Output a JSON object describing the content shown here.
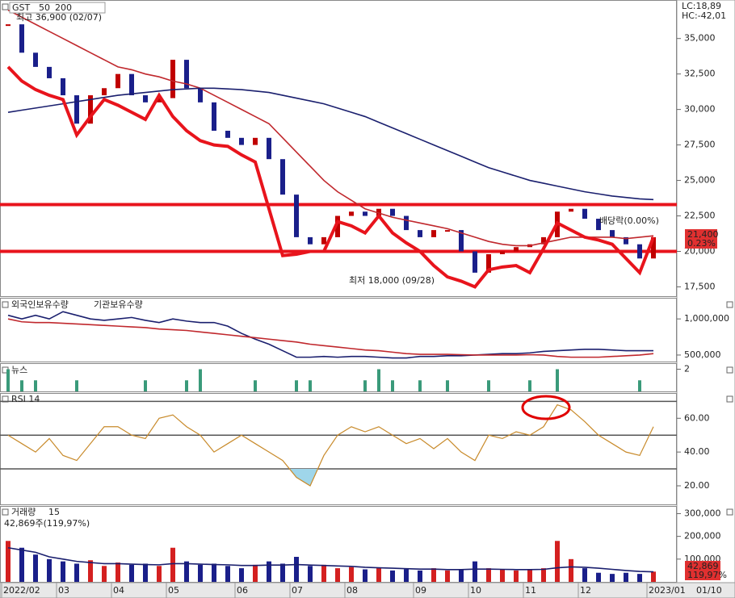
{
  "chart_data": [
    {
      "type": "line",
      "symbol": "GST",
      "categories": [
        "2022/02",
        null,
        null,
        null,
        "03",
        null,
        null,
        null,
        "04",
        null,
        null,
        null,
        "05",
        null,
        null,
        null,
        null,
        "06",
        null,
        null,
        null,
        "07",
        null,
        null,
        null,
        "08",
        null,
        null,
        null,
        null,
        "09",
        null,
        null,
        null,
        "10",
        null,
        null,
        null,
        "11",
        null,
        null,
        null,
        "12",
        null,
        null,
        null,
        null,
        "2023/01"
      ],
      "series": [
        {
          "name": "GST",
          "color": "#c00000",
          "values": [
            36000,
            34000,
            33000,
            32200,
            31000,
            29000,
            31000,
            31500,
            32500,
            31000,
            30500,
            30800,
            33500,
            31500,
            30500,
            28500,
            28000,
            27500,
            28000,
            26500,
            24000,
            21000,
            20500,
            21000,
            22500,
            22800,
            22500,
            23000,
            22500,
            21500,
            21000,
            21500,
            21500,
            20000,
            18500,
            19800,
            20000,
            20300,
            20500,
            21000,
            22800,
            23000,
            22300,
            21500,
            21000,
            20500,
            19500,
            21000
          ]
        },
        {
          "name": "50",
          "color": "#c0282d",
          "values": [
            37000,
            36500,
            36000,
            35500,
            35000,
            34500,
            34000,
            33500,
            33000,
            32800,
            32500,
            32300,
            32000,
            31800,
            31500,
            31000,
            30500,
            30000,
            29500,
            29000,
            28000,
            27000,
            26000,
            25000,
            24200,
            23600,
            23000,
            22700,
            22400,
            22200,
            22000,
            21800,
            21600,
            21300,
            21000,
            20700,
            20500,
            20400,
            20400,
            20600,
            20800,
            21000,
            21000,
            21000,
            21000,
            20900,
            21000,
            21100
          ]
        },
        {
          "name": "200",
          "color": "#1a1f6e",
          "values": [
            29800,
            29950,
            30100,
            30250,
            30400,
            30550,
            30700,
            30850,
            31000,
            31100,
            31200,
            31300,
            31400,
            31450,
            31500,
            31500,
            31450,
            31400,
            31300,
            31200,
            31000,
            30800,
            30600,
            30400,
            30100,
            29800,
            29500,
            29100,
            28700,
            28300,
            27900,
            27500,
            27100,
            26700,
            26300,
            25900,
            25600,
            25300,
            25000,
            24800,
            24600,
            24400,
            24200,
            24050,
            23900,
            23800,
            23700,
            23650
          ]
        }
      ],
      "trend": {
        "color": "#e8141c",
        "values": [
          33000,
          32000,
          31400,
          31000,
          30700,
          28200,
          29500,
          30700,
          30300,
          29800,
          29300,
          31000,
          29500,
          28500,
          27800,
          27500,
          27400,
          26800,
          26300,
          23000,
          19700,
          19800,
          20000,
          20000,
          22100,
          21800,
          21300,
          22500,
          21300,
          20600,
          20000,
          19000,
          18200,
          17900,
          17500,
          18700,
          18900,
          19000,
          18500,
          20200,
          22000,
          21500,
          21000,
          20800,
          20500,
          19500,
          18500,
          21000
        ]
      },
      "hlines": [
        23300,
        20000
      ],
      "high_label": "최고 36,900 (02/07)",
      "low_label": "최저 18,000 (09/28)",
      "dividend_label": "배당락(0.00%)",
      "lc_label": "LC:18,89",
      "hc_label": "HC:-42,01",
      "price_label": "21,400",
      "change_label": "0.23%",
      "ylim": [
        16900,
        37600
      ],
      "yticks": [
        {
          "value": 35000,
          "label": "35,000"
        },
        {
          "value": 32500,
          "label": "32,500"
        },
        {
          "value": 30000,
          "label": "30,000"
        },
        {
          "value": 27500,
          "label": "27,500"
        },
        {
          "value": 25000,
          "label": "25,000"
        },
        {
          "value": 22500,
          "label": "22,500"
        },
        {
          "value": 20000,
          "label": "20,000"
        },
        {
          "value": 17500,
          "label": "17,500"
        }
      ]
    },
    {
      "type": "line",
      "series": [
        {
          "name": "외국인보유수량",
          "color": "#1a1f6e",
          "values": [
            1050000,
            1000000,
            1050000,
            1000000,
            1100000,
            1050000,
            1000000,
            980000,
            1000000,
            1020000,
            980000,
            950000,
            1000000,
            970000,
            950000,
            950000,
            900000,
            800000,
            720000,
            650000,
            560000,
            470000,
            470000,
            480000,
            470000,
            480000,
            480000,
            470000,
            460000,
            460000,
            480000,
            480000,
            490000,
            490000,
            500000,
            510000,
            520000,
            520000,
            530000,
            550000,
            560000,
            570000,
            580000,
            580000,
            570000,
            560000,
            560000,
            560000
          ]
        },
        {
          "name": "기관보유수량",
          "color": "#c0282d",
          "values": [
            1000000,
            960000,
            950000,
            950000,
            940000,
            930000,
            920000,
            910000,
            900000,
            890000,
            880000,
            860000,
            850000,
            840000,
            820000,
            800000,
            780000,
            760000,
            740000,
            720000,
            700000,
            680000,
            650000,
            630000,
            610000,
            590000,
            570000,
            560000,
            540000,
            520000,
            510000,
            510000,
            510000,
            505000,
            500000,
            500000,
            500000,
            500000,
            505000,
            500000,
            480000,
            470000,
            470000,
            470000,
            480000,
            490000,
            500000,
            520000
          ]
        }
      ],
      "ylim": [
        410000,
        1270000
      ],
      "yticks": [
        {
          "value": 1000000,
          "label": "1,000,000"
        },
        {
          "value": 500000,
          "label": "500,000"
        }
      ]
    },
    {
      "type": "bar",
      "title": "뉴스",
      "color": "#3a9a7a",
      "values": [
        2,
        1,
        1,
        0,
        0,
        1,
        0,
        0,
        0,
        0,
        1,
        0,
        0,
        1,
        2,
        0,
        0,
        0,
        1,
        0,
        0,
        1,
        1,
        0,
        0,
        0,
        1,
        2,
        1,
        0,
        1,
        0,
        1,
        0,
        0,
        1,
        0,
        0,
        1,
        0,
        2,
        0,
        0,
        0,
        0,
        0,
        1,
        0
      ],
      "ylim": [
        0,
        2.4
      ],
      "yticks": [
        2
      ]
    },
    {
      "type": "line",
      "title": "RSI 14",
      "color": "#c88a2a",
      "fill_color": "#9fd6ea",
      "values": [
        50,
        45,
        40,
        48,
        38,
        35,
        45,
        55,
        55,
        50,
        48,
        60,
        62,
        55,
        50,
        40,
        45,
        50,
        45,
        40,
        35,
        25,
        20,
        38,
        50,
        55,
        52,
        55,
        50,
        45,
        48,
        42,
        48,
        40,
        35,
        50,
        48,
        52,
        50,
        55,
        68,
        65,
        58,
        50,
        45,
        40,
        38,
        55
      ],
      "levels": [
        70,
        50,
        30
      ],
      "ylim": [
        9,
        74
      ],
      "yticks": [
        {
          "value": 60,
          "label": "60.00"
        },
        {
          "value": 40,
          "label": "40.00"
        },
        {
          "value": 20,
          "label": "20.00"
        }
      ]
    },
    {
      "type": "bar",
      "title": "거래량",
      "period": "15",
      "info_label": "42,869주(119,97%)",
      "up_color": "#d42020",
      "down_color": "#1a1f8a",
      "ma_color": "#1a1f6e",
      "values": [
        180000,
        150000,
        120000,
        100000,
        90000,
        80000,
        95000,
        70000,
        85000,
        75000,
        80000,
        70000,
        150000,
        90000,
        75000,
        80000,
        70000,
        60000,
        75000,
        90000,
        80000,
        110000,
        70000,
        75000,
        60000,
        65000,
        55000,
        60000,
        50000,
        55000,
        50000,
        60000,
        50000,
        55000,
        90000,
        60000,
        55000,
        50000,
        55000,
        60000,
        180000,
        100000,
        60000,
        40000,
        35000,
        40000,
        35000,
        45000
      ],
      "ma": [
        150000,
        140000,
        130000,
        110000,
        100000,
        90000,
        85000,
        80000,
        80000,
        78000,
        76000,
        75000,
        80000,
        80000,
        78000,
        76000,
        75000,
        72000,
        72000,
        74000,
        74000,
        76000,
        74000,
        72000,
        70000,
        68000,
        64000,
        62000,
        60000,
        58000,
        56000,
        56000,
        54000,
        54000,
        56000,
        56000,
        55000,
        54000,
        54000,
        55000,
        62000,
        66000,
        64000,
        60000,
        55000,
        50000,
        46000,
        44000
      ],
      "last_label": "42,869",
      "ratio_label": "119,97%",
      "cursor_date": "01/10",
      "ylim": [
        0,
        330000
      ],
      "yticks": [
        {
          "value": 300000,
          "label": "300,000"
        },
        {
          "value": 200000,
          "label": "200,000"
        },
        {
          "value": 100000,
          "label": "100,000"
        }
      ]
    }
  ]
}
